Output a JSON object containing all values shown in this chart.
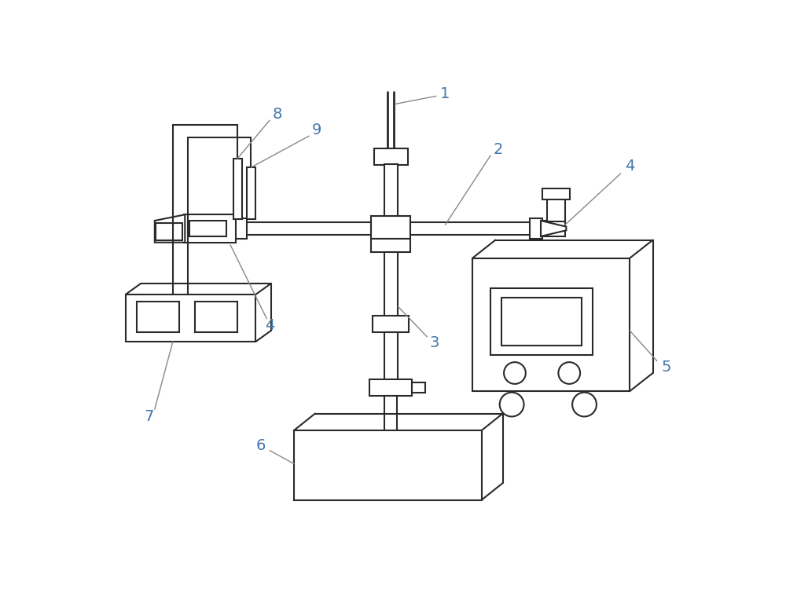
{
  "bg_color": "#ffffff",
  "line_color": "#2a2a2a",
  "label_color": "#4477aa",
  "figsize": [
    10,
    7.5
  ],
  "dpi": 100
}
